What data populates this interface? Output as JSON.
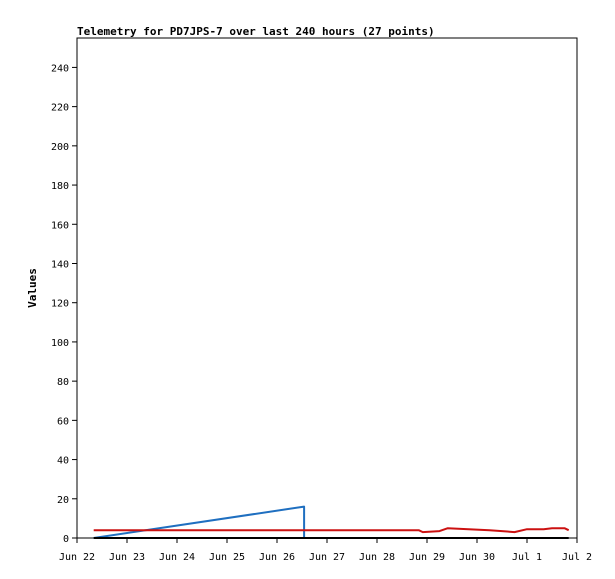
{
  "chart_data": {
    "type": "line",
    "title": "Telemetry for PD7JPS-7 over last 240 hours (27 points)",
    "xlabel": "",
    "ylabel": "Values",
    "xlim": [
      "Jun 22",
      "Jul 2"
    ],
    "ylim": [
      0,
      255
    ],
    "x_ticks": [
      "Jun 22",
      "Jun 23",
      "Jun 24",
      "Jun 25",
      "Jun 26",
      "Jun 27",
      "Jun 28",
      "Jun 29",
      "Jun 30",
      "Jul 1",
      "Jul 2"
    ],
    "y_ticks": [
      0,
      20,
      40,
      60,
      80,
      100,
      120,
      140,
      160,
      180,
      200,
      220,
      240
    ],
    "grid": false,
    "legend": "none",
    "series": [
      {
        "color": "#1f6fc0",
        "points": [
          [
            "Jun 22 08:00",
            0
          ],
          [
            "Jun 26 13:00",
            16
          ],
          [
            "Jun 26 13:00",
            0
          ]
        ]
      },
      {
        "color": "#cc1111",
        "points": [
          [
            "Jun 22 08:00",
            4
          ],
          [
            "Jun 28 20:00",
            4
          ],
          [
            "Jun 28 22:00",
            3
          ],
          [
            "Jun 29 06:00",
            3.5
          ],
          [
            "Jun 29 10:00",
            5
          ],
          [
            "Jun 29 20:00",
            4.5
          ],
          [
            "Jun 30 06:00",
            4
          ],
          [
            "Jun 30 12:00",
            3.5
          ],
          [
            "Jun 30 18:00",
            3
          ],
          [
            "Jul 1 00:00",
            4.5
          ],
          [
            "Jul 1 08:00",
            4.5
          ],
          [
            "Jul 1 12:00",
            5
          ],
          [
            "Jul 1 18:00",
            5
          ],
          [
            "Jul 1 20:00",
            4
          ]
        ]
      },
      {
        "color": "#000000",
        "points": [
          [
            "Jun 22 08:00",
            0
          ],
          [
            "Jul 1 20:00",
            0
          ]
        ]
      }
    ]
  }
}
